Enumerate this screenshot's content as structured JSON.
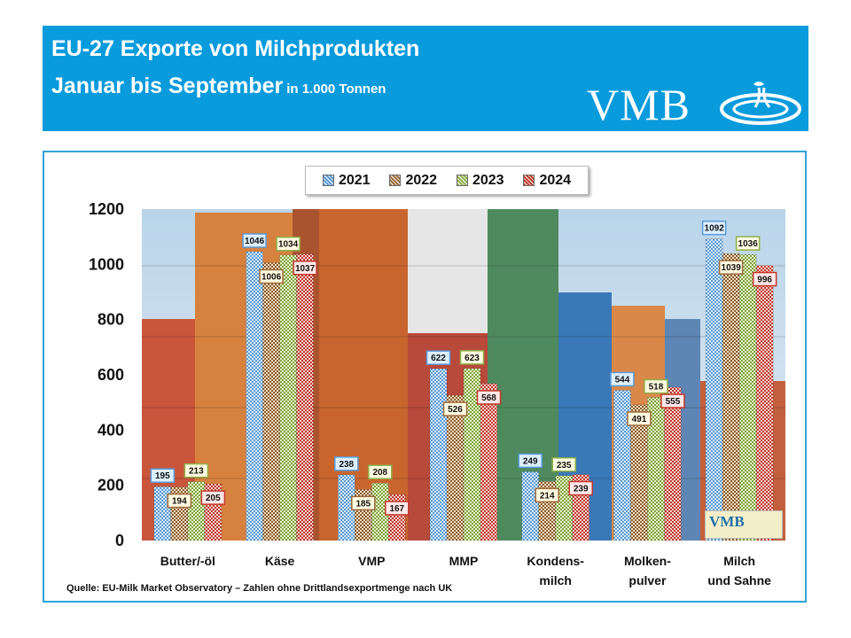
{
  "header": {
    "title_line1": "EU-27 Exporte von Milchprodukten",
    "title_line2": "Januar bis September",
    "unit": "in 1.000 Tonnen",
    "logo_text": "VMB",
    "background_color": "#0a9bdc"
  },
  "inner_logo_text": "VMB",
  "source_note": "Quelle: EU-Milk Market Observatory – Zahlen ohne Drittlandsexportmenge nach UK",
  "chart_data": {
    "type": "bar",
    "title": "EU-27 Exporte von Milchprodukten Januar bis September in 1.000 Tonnen",
    "categories": [
      [
        "Butter/-öl"
      ],
      [
        "Käse"
      ],
      [
        "VMP"
      ],
      [
        "MMP"
      ],
      [
        "Kondens-",
        "milch"
      ],
      [
        "Molken-",
        "pulver"
      ],
      [
        "Milch",
        "und Sahne"
      ]
    ],
    "series": [
      {
        "name": "2021",
        "color": "#5b9bd5",
        "values": [
          195,
          1046,
          238,
          622,
          249,
          544,
          1092
        ]
      },
      {
        "name": "2022",
        "color": "#9c6b3c",
        "values": [
          194,
          1006,
          185,
          526,
          214,
          491,
          1039
        ]
      },
      {
        "name": "2023",
        "color": "#8fb04a",
        "values": [
          213,
          1034,
          208,
          623,
          235,
          518,
          1036
        ]
      },
      {
        "name": "2024",
        "color": "#c0392b",
        "values": [
          205,
          1037,
          167,
          568,
          239,
          555,
          996
        ]
      }
    ],
    "ylim": [
      0,
      1200
    ],
    "yticks": [
      0,
      200,
      400,
      600,
      800,
      1000,
      1200
    ],
    "label_box_colors": {
      "2021": "#dcefff",
      "2022": "#fffbe0",
      "2023": "#fffbe0",
      "2024": "#ffe8e8"
    },
    "legend_position": "top-center",
    "background": "photo of stacked shipping containers",
    "grid": false
  }
}
